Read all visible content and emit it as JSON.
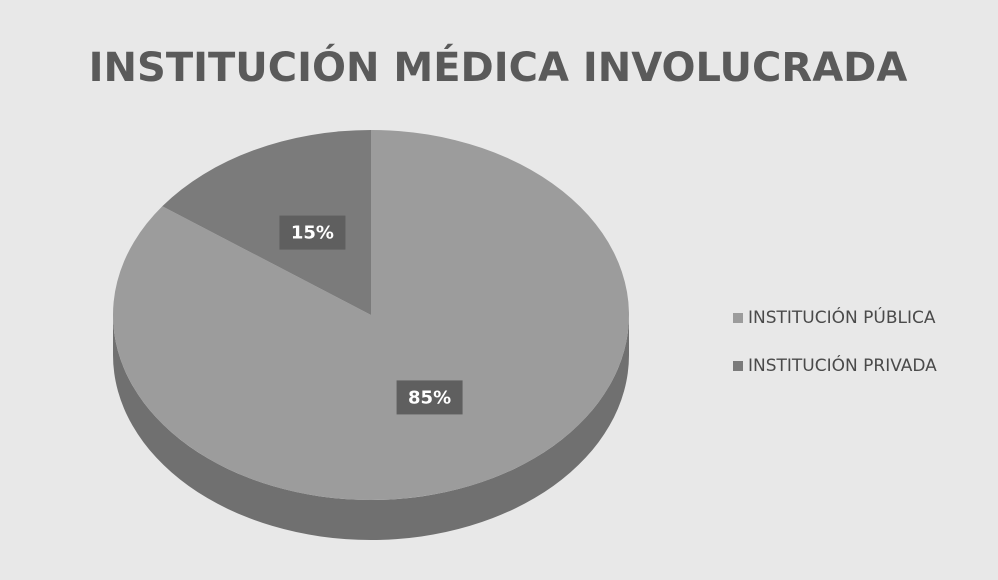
{
  "chart_data": {
    "type": "pie",
    "title": "INSTITUCIÓN MÉDICA INVOLUCRADA",
    "categories": [
      "INSTITUCIÓN PÚBLICA",
      "INSTITUCIÓN PRIVADA"
    ],
    "values": [
      85,
      15
    ],
    "value_labels": [
      "85%",
      "15%"
    ],
    "colors": [
      "#9c9c9c",
      "#7b7b7b"
    ],
    "legend": "right"
  }
}
